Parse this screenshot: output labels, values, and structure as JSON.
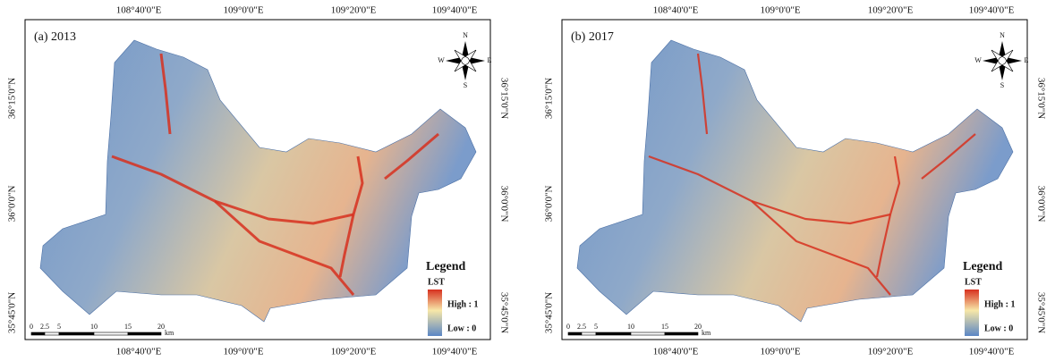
{
  "panels": [
    {
      "label": "(a) 2013",
      "top_ticks": [
        "108°40'0\"E",
        "109°0'0\"E",
        "109°20'0\"E",
        "109°40'0\"E"
      ],
      "bottom_ticks": [
        "108°40'0\"E",
        "109°0'0\"E",
        "109°20'0\"E",
        "109°40'0\"E"
      ],
      "left_ticks": [
        "36°15'0\"N",
        "36°0'0\"N",
        "35°45'0\"N"
      ],
      "right_ticks": [
        "36°15'0\"N",
        "36°0'0\"N",
        "35°45'0\"N"
      ],
      "compass": {
        "n": "N",
        "s": "S",
        "e": "E",
        "w": "W"
      },
      "legend": {
        "title": "Legend",
        "field": "LST",
        "high": "High : 1",
        "low": "Low : 0"
      },
      "scale": {
        "labels": [
          "0",
          "2.5",
          "5",
          "10",
          "15",
          "20"
        ],
        "unit": "km"
      }
    },
    {
      "label": "(b) 2017",
      "top_ticks": [
        "108°40'0\"E",
        "109°0'0\"E",
        "109°20'0\"E",
        "109°40'0\"E"
      ],
      "bottom_ticks": [
        "108°40'0\"E",
        "109°0'0\"E",
        "109°20'0\"E",
        "109°40'0\"E"
      ],
      "left_ticks": [
        "36°15'0\"N",
        "36°0'0\"N",
        "35°45'0\"N"
      ],
      "right_ticks": [
        "36°15'0\"N",
        "36°0'0\"N",
        "35°45'0\"N"
      ],
      "compass": {
        "n": "N",
        "s": "S",
        "e": "E",
        "w": "W"
      },
      "legend": {
        "title": "Legend",
        "field": "LST",
        "high": "High : 1",
        "low": "Low : 0"
      },
      "scale": {
        "labels": [
          "0",
          "2.5",
          "5",
          "10",
          "15",
          "20"
        ],
        "unit": "km"
      }
    }
  ]
}
